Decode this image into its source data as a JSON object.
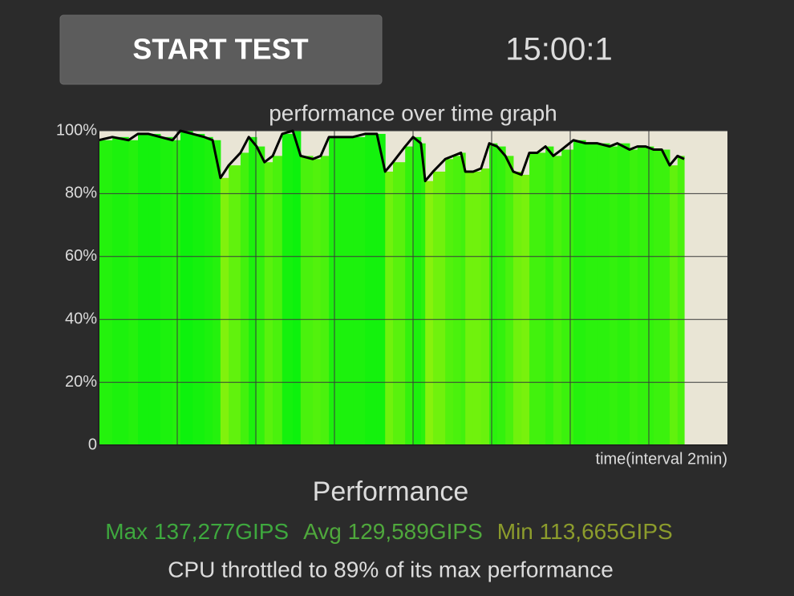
{
  "button": "START TEST",
  "timer": "15:00:1",
  "chart_data": {
    "type": "line",
    "title": "performance over time graph",
    "xlabel": "time(interval 2min)",
    "x": [
      0,
      0.35,
      0.76,
      1.0,
      1.27,
      1.57,
      1.88,
      2.08,
      2.39,
      2.69,
      2.9,
      3.1,
      3.31,
      3.61,
      3.82,
      4.02,
      4.22,
      4.43,
      4.67,
      4.94,
      5.14,
      5.45,
      5.65,
      5.86,
      6.16,
      6.47,
      6.78,
      7.08,
      7.29,
      7.49,
      7.8,
      8.0,
      8.2,
      8.31,
      8.51,
      8.82,
      9.02,
      9.22,
      9.33,
      9.53,
      9.73,
      9.94,
      10.14,
      10.35,
      10.55,
      10.76,
      10.96,
      11.16,
      11.37,
      11.57,
      11.78,
      12.08,
      12.39,
      12.69,
      13.0,
      13.2,
      13.51,
      13.71,
      13.92,
      14.12,
      14.33,
      14.53,
      14.73,
      14.9
    ],
    "values": [
      97,
      98,
      97,
      99,
      99,
      98,
      97,
      100,
      99,
      98,
      97,
      85,
      89,
      93,
      98,
      95,
      90,
      92,
      99,
      100,
      92,
      91,
      92,
      98,
      98,
      98,
      99,
      99,
      87,
      90,
      95,
      98,
      96,
      84,
      87,
      91,
      92,
      93,
      87,
      87,
      88,
      96,
      95,
      92,
      87,
      86,
      93,
      93,
      95,
      92,
      94,
      97,
      96,
      96,
      95,
      96,
      94,
      95,
      95,
      94,
      94,
      89,
      92,
      91
    ],
    "color": "#000000",
    "xlim": [
      0,
      16
    ],
    "xticks": [
      2,
      4,
      6,
      8,
      10,
      12,
      14
    ],
    "show_xtick_labels": false,
    "ylim": [
      0,
      100
    ],
    "yticks": [
      0,
      {
        "value": 20,
        "label": "20%"
      },
      {
        "value": 40,
        "label": "40%"
      },
      {
        "value": 60,
        "label": "60%"
      },
      {
        "value": 80,
        "label": "80%"
      },
      {
        "value": 100,
        "label": "100%"
      }
    ],
    "grid": true
  },
  "summary": {
    "heading": "Performance",
    "max": "Max 137,277GIPS",
    "avg": "Avg 129,589GIPS",
    "min": "Min 113,665GIPS",
    "note": "CPU throttled to 89% of its max performance"
  }
}
